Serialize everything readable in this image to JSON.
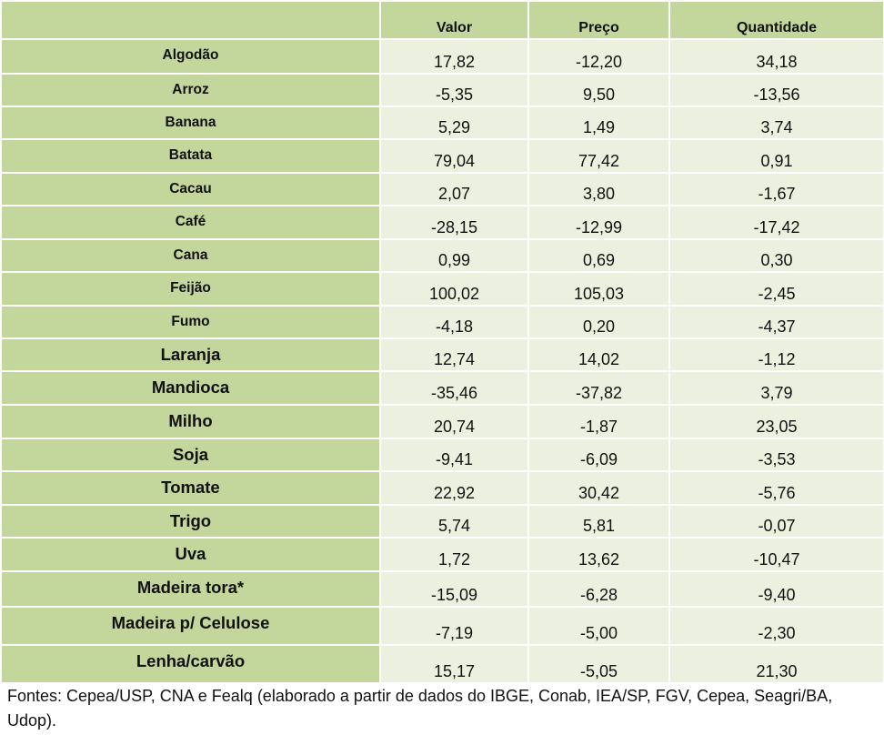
{
  "headers": [
    "",
    "Valor",
    "Preço",
    "Quantidade"
  ],
  "rows": [
    {
      "label": "Algodão",
      "valor": "17,82",
      "preco": "-12,20",
      "quantidade": "34,18"
    },
    {
      "label": "Arroz",
      "valor": "-5,35",
      "preco": "9,50",
      "quantidade": "-13,56"
    },
    {
      "label": "Banana",
      "valor": "5,29",
      "preco": "1,49",
      "quantidade": "3,74"
    },
    {
      "label": "Batata",
      "valor": "79,04",
      "preco": "77,42",
      "quantidade": "0,91"
    },
    {
      "label": "Cacau",
      "valor": "2,07",
      "preco": "3,80",
      "quantidade": "-1,67"
    },
    {
      "label": "Café",
      "valor": "-28,15",
      "preco": "-12,99",
      "quantidade": "-17,42"
    },
    {
      "label": "Cana",
      "valor": "0,99",
      "preco": "0,69",
      "quantidade": "0,30"
    },
    {
      "label": "Feijão",
      "valor": "100,02",
      "preco": "105,03",
      "quantidade": "-2,45"
    },
    {
      "label": "Fumo",
      "valor": "-4,18",
      "preco": "0,20",
      "quantidade": "-4,37"
    },
    {
      "label": "Laranja",
      "valor": "12,74",
      "preco": "14,02",
      "quantidade": "-1,12"
    },
    {
      "label": "Mandioca",
      "valor": "-35,46",
      "preco": "-37,82",
      "quantidade": "3,79"
    },
    {
      "label": "Milho",
      "valor": "20,74",
      "preco": "-1,87",
      "quantidade": "23,05"
    },
    {
      "label": "Soja",
      "valor": "-9,41",
      "preco": "-6,09",
      "quantidade": "-3,53"
    },
    {
      "label": "Tomate",
      "valor": "22,92",
      "preco": "30,42",
      "quantidade": "-5,76"
    },
    {
      "label": "Trigo",
      "valor": "5,74",
      "preco": "5,81",
      "quantidade": "-0,07"
    },
    {
      "label": "Uva",
      "valor": "1,72",
      "preco": "13,62",
      "quantidade": "-10,47"
    },
    {
      "label": "Madeira tora*",
      "valor": "-15,09",
      "preco": "-6,28",
      "quantidade": "-9,40"
    },
    {
      "label": "Madeira p/ Celulose",
      "valor": "-7,19",
      "preco": "-5,00",
      "quantidade": "-2,30"
    },
    {
      "label": "Lenha/carvão",
      "valor": "15,17",
      "preco": "-5,05",
      "quantidade": "21,30"
    }
  ],
  "footnote": "Fontes: Cepea/USP, CNA e Fealq (elaborado a partir de dados do IBGE, Conab, IEA/SP, FGV, Cepea, Seagri/BA, Udop)."
}
